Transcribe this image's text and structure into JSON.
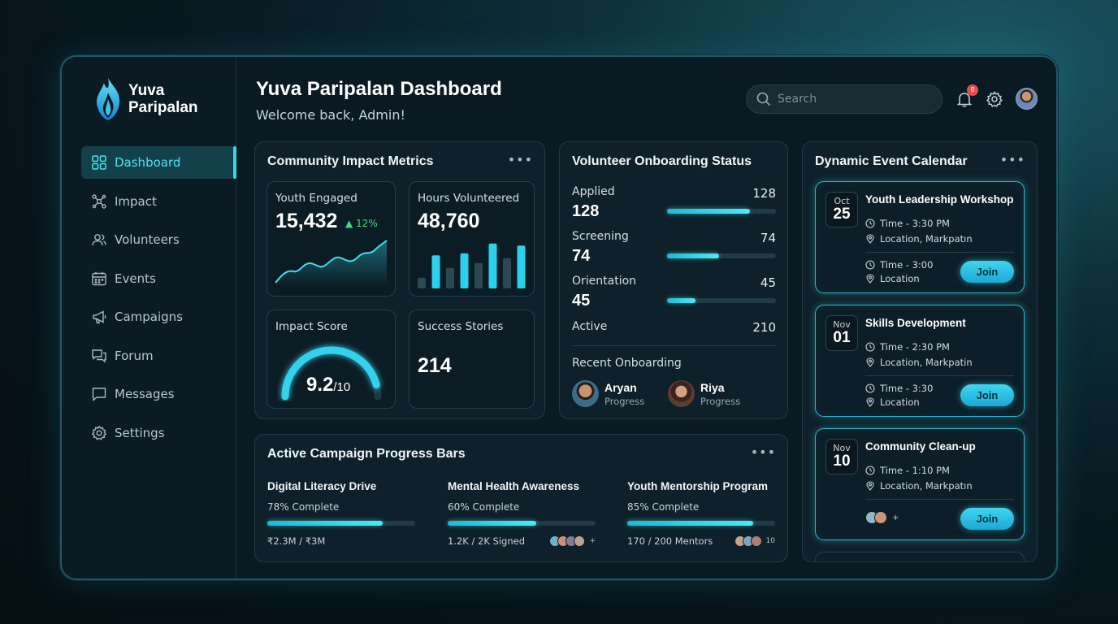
{
  "brand": {
    "name_line1": "Yuva",
    "name_line2": "Paripalan"
  },
  "nav": {
    "items": [
      {
        "label": "Dashboard",
        "icon": "grid-icon",
        "active": true
      },
      {
        "label": "Impact",
        "icon": "network-icon"
      },
      {
        "label": "Volunteers",
        "icon": "users-icon"
      },
      {
        "label": "Events",
        "icon": "calendar-icon"
      },
      {
        "label": "Campaigns",
        "icon": "megaphone-icon"
      },
      {
        "label": "Forum",
        "icon": "forum-icon"
      },
      {
        "label": "Messages",
        "icon": "message-icon"
      },
      {
        "label": "Settings",
        "icon": "gear-icon"
      }
    ]
  },
  "header": {
    "title": "Yuva Paripalan Dashboard",
    "subtitle": "Welcome back, Admin!",
    "search_placeholder": "Search",
    "notification_count": "8"
  },
  "metrics": {
    "title": "Community Impact Metrics",
    "menu": "•••",
    "youth_engaged": {
      "label": "Youth Engaged",
      "value": "15,432",
      "trend": "▲ 12%"
    },
    "hours_volunteered": {
      "label": "Hours Volunteered",
      "value": "48,760",
      "bar_levels": [
        0.22,
        0.68,
        0.42,
        0.72,
        0.52,
        0.92,
        0.62,
        0.88
      ]
    },
    "impact_score": {
      "label": "Impact Score",
      "value": "9.2",
      "suffix": "/10",
      "score": 9.2,
      "max": 10
    },
    "success_stories": {
      "label": "Success Stories",
      "value": "214"
    }
  },
  "onboarding": {
    "title": "Volunteer Onboarding Status",
    "max": 210,
    "rows": [
      {
        "label": "Applied",
        "big": "128",
        "right": "128",
        "level": 0.76
      },
      {
        "label": "Screening",
        "big": "74",
        "right": "74",
        "level": 0.48
      },
      {
        "label": "Orientation",
        "big": "45",
        "right": "45",
        "level": 0.26
      }
    ],
    "active": {
      "label": "Active",
      "right": "210"
    },
    "recent_title": "Recent Onboarding",
    "recent": [
      {
        "name": "Aryan",
        "sub": "Progress"
      },
      {
        "name": "Riya",
        "sub": "Progress"
      }
    ]
  },
  "campaigns": {
    "title": "Active Campaign Progress Bars",
    "menu": "•••",
    "items": [
      {
        "name": "Digital Literacy Drive",
        "pct_text": "78% Complete",
        "progress": 0.78,
        "foot": "₹2.3M / ₹3M",
        "extra": ""
      },
      {
        "name": "Mental Health Awareness",
        "pct_text": "60% Complete",
        "progress": 0.6,
        "foot": "1.2K / 2K Signed",
        "extra": "+"
      },
      {
        "name": "Youth Mentorship Program",
        "pct_text": "85% Complete",
        "progress": 0.85,
        "foot": "170 / 200 Mentors",
        "extra": "10"
      }
    ]
  },
  "calendar": {
    "title": "Dynamic Event Calendar",
    "menu": "•••",
    "events": [
      {
        "month": "Oct",
        "day": "25",
        "title": "Youth Leadership Workshop",
        "time1": "Time - 3:30 PM",
        "loc1": "Location, Markpatın",
        "time2": "Time - 3:00",
        "loc2": "Location",
        "join": "Join"
      },
      {
        "month": "Nov",
        "day": "01",
        "title": "Skills Development",
        "time1": "Time - 2:30 PM",
        "loc1": "Location, Markpatin",
        "time2": "Time - 3:30",
        "loc2": "Location",
        "join": "Join"
      },
      {
        "month": "Nov",
        "day": "10",
        "title": "Community Clean-up",
        "time1": "Time - 1:10 PM",
        "loc1": "Location, Markpatın",
        "plus": "+",
        "join": "Join"
      }
    ]
  },
  "colors": {
    "accent": "#35d6e6",
    "accent_fill": "#1fb7d6",
    "panel": "#0e2029",
    "trend_up": "#3fdc83",
    "badge": "#e84d4d"
  }
}
